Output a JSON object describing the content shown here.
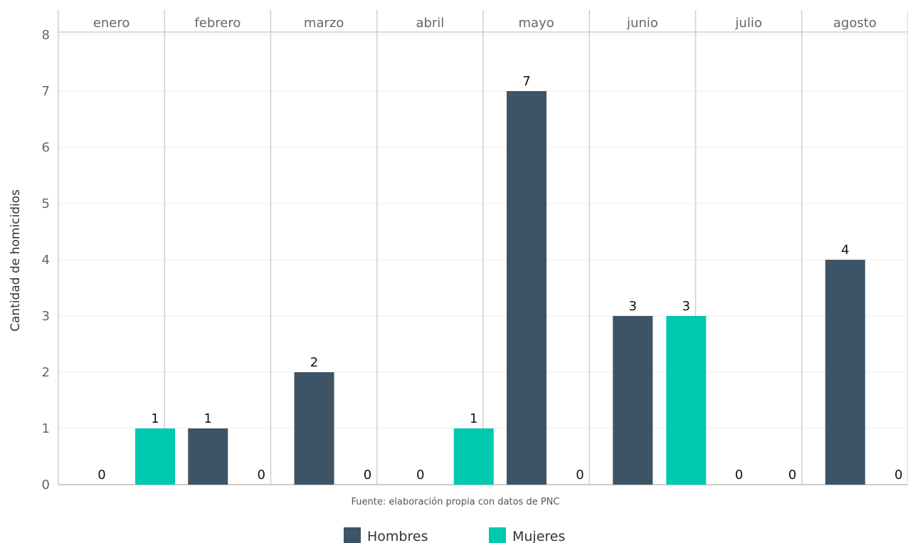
{
  "chart_data": {
    "type": "bar",
    "categories": [
      "enero",
      "febrero",
      "marzo",
      "abril",
      "mayo",
      "junio",
      "julio",
      "agosto"
    ],
    "series": [
      {
        "name": "Hombres",
        "color": "#3d5466",
        "values": [
          0,
          1,
          2,
          0,
          7,
          3,
          0,
          4
        ]
      },
      {
        "name": "Mujeres",
        "color": "#00c9b1",
        "values": [
          1,
          0,
          0,
          1,
          0,
          3,
          0,
          0
        ]
      }
    ],
    "ylabel": "Cantidad de homicidios",
    "xlabel": "",
    "caption": "Fuente: elaboración propia con datos de PNC",
    "ylim": [
      0,
      8
    ],
    "yticks": [
      0,
      1,
      2,
      3,
      4,
      5,
      6,
      7,
      8
    ],
    "grid": true,
    "legend_position": "bottom",
    "facet": "month panels"
  }
}
